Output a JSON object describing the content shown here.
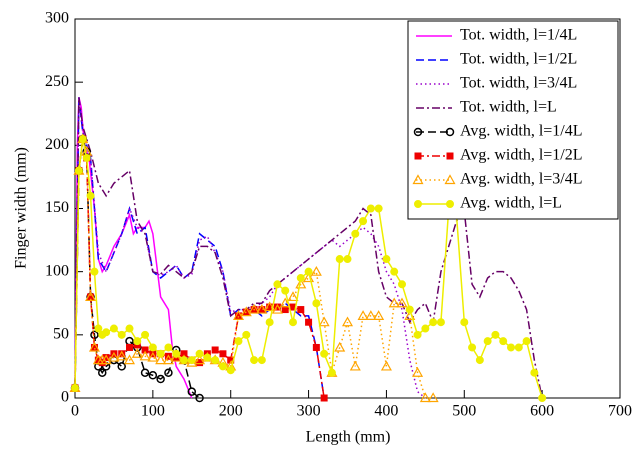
{
  "chart_data": {
    "type": "line",
    "x_label": "Length (mm)",
    "y_label": "Finger width (mm)",
    "xlim": [
      0,
      700
    ],
    "xticks": [
      0,
      100,
      200,
      300,
      400,
      500,
      600,
      700
    ],
    "ylim": [
      0,
      300
    ],
    "yticks": [
      0,
      50,
      100,
      150,
      200,
      250,
      300
    ],
    "legend": "top-right",
    "series": [
      {
        "name": "Tot. width, l=1/4L",
        "color": "#ff00ff",
        "dash": "solid",
        "marker": "none",
        "x": [
          0,
          3,
          5,
          8,
          12,
          18,
          25,
          30,
          35,
          40,
          50,
          60,
          70,
          75,
          80,
          90,
          95,
          100,
          110,
          120,
          125,
          130,
          140,
          150
        ],
        "values": [
          10,
          200,
          238,
          230,
          200,
          190,
          150,
          110,
          100,
          105,
          120,
          130,
          145,
          130,
          135,
          135,
          140,
          130,
          80,
          70,
          40,
          25,
          15,
          0
        ]
      },
      {
        "name": "Tot. width, l=1/2L",
        "color": "#0000ff",
        "dash": "dashed",
        "marker": "none",
        "x": [
          0,
          5,
          10,
          20,
          30,
          40,
          50,
          60,
          70,
          80,
          90,
          100,
          110,
          120,
          130,
          140,
          150,
          160,
          170,
          180,
          190,
          200,
          210,
          220,
          230,
          240,
          250,
          260,
          270,
          280,
          290,
          300,
          310,
          320
        ],
        "values": [
          10,
          238,
          210,
          190,
          110,
          100,
          115,
          130,
          150,
          130,
          135,
          100,
          95,
          100,
          105,
          95,
          100,
          130,
          125,
          120,
          100,
          65,
          70,
          70,
          70,
          65,
          70,
          70,
          75,
          70,
          65,
          65,
          40,
          0
        ]
      },
      {
        "name": "Tot. width, l=3/4L",
        "color": "#9900cc",
        "dash": "dotted",
        "marker": "none",
        "x": [
          0,
          5,
          10,
          20,
          30,
          40,
          50,
          60,
          70,
          80,
          90,
          100,
          110,
          120,
          130,
          140,
          150,
          160,
          170,
          180,
          190,
          200,
          210,
          220,
          230,
          240,
          250,
          260,
          270,
          280,
          290,
          300,
          310,
          320,
          330,
          340,
          350,
          360,
          370,
          380,
          390,
          400,
          410,
          420,
          430,
          440,
          450
        ],
        "values": [
          10,
          236,
          210,
          190,
          115,
          100,
          115,
          130,
          150,
          135,
          130,
          100,
          97,
          100,
          105,
          95,
          98,
          125,
          128,
          115,
          100,
          68,
          70,
          70,
          72,
          75,
          80,
          90,
          95,
          100,
          105,
          110,
          115,
          120,
          125,
          120,
          125,
          130,
          135,
          130,
          120,
          100,
          90,
          70,
          30,
          5,
          0
        ]
      },
      {
        "name": "Tot. width, l=L",
        "color": "#660066",
        "dash": "dashdot",
        "marker": "none",
        "x": [
          0,
          5,
          10,
          20,
          30,
          40,
          50,
          60,
          70,
          80,
          90,
          100,
          110,
          120,
          130,
          140,
          150,
          160,
          170,
          180,
          190,
          200,
          210,
          220,
          230,
          240,
          250,
          260,
          270,
          280,
          290,
          300,
          310,
          320,
          330,
          340,
          350,
          360,
          370,
          380,
          390,
          400,
          410,
          420,
          430,
          440,
          450,
          460,
          470,
          480,
          490,
          500,
          510,
          520,
          530,
          540,
          550,
          560,
          570,
          580,
          590,
          600
        ],
        "values": [
          10,
          238,
          215,
          195,
          170,
          160,
          170,
          175,
          180,
          140,
          130,
          100,
          98,
          105,
          100,
          95,
          100,
          120,
          120,
          115,
          95,
          65,
          70,
          70,
          75,
          75,
          85,
          90,
          95,
          100,
          105,
          110,
          115,
          120,
          125,
          130,
          135,
          140,
          150,
          145,
          100,
          80,
          75,
          75,
          60,
          70,
          75,
          60,
          100,
          120,
          140,
          148,
          90,
          80,
          95,
          100,
          100,
          95,
          85,
          70,
          30,
          0
        ]
      },
      {
        "name": "Avg. width, l=1/4L",
        "color": "#000000",
        "dash": "dashed",
        "marker": "circle-open",
        "x": [
          0,
          5,
          10,
          15,
          20,
          25,
          30,
          35,
          40,
          50,
          60,
          70,
          80,
          90,
          100,
          110,
          120,
          130,
          140,
          150,
          160
        ],
        "values": [
          8,
          180,
          205,
          195,
          80,
          50,
          25,
          20,
          25,
          30,
          25,
          45,
          40,
          20,
          18,
          15,
          20,
          38,
          30,
          5,
          0
        ]
      },
      {
        "name": "Avg. width, l=1/2L",
        "color": "#ee0000",
        "dash": "dashdot",
        "marker": "square",
        "x": [
          0,
          5,
          10,
          15,
          20,
          25,
          30,
          35,
          40,
          50,
          60,
          70,
          80,
          90,
          100,
          110,
          120,
          130,
          140,
          150,
          160,
          170,
          180,
          190,
          200,
          210,
          220,
          230,
          240,
          250,
          260,
          270,
          280,
          290,
          300,
          310,
          320
        ],
        "values": [
          8,
          180,
          205,
          190,
          80,
          40,
          30,
          28,
          32,
          35,
          35,
          40,
          42,
          38,
          35,
          35,
          33,
          32,
          35,
          30,
          28,
          35,
          38,
          35,
          30,
          65,
          68,
          70,
          70,
          72,
          72,
          70,
          72,
          70,
          60,
          40,
          0
        ]
      },
      {
        "name": "Avg. width, l=3/4L",
        "color": "#ffa500",
        "dash": "dotted",
        "marker": "triangle-open",
        "x": [
          0,
          5,
          10,
          15,
          20,
          25,
          30,
          35,
          40,
          50,
          60,
          70,
          80,
          90,
          100,
          110,
          120,
          130,
          140,
          150,
          160,
          170,
          180,
          190,
          200,
          210,
          220,
          230,
          240,
          250,
          260,
          270,
          280,
          290,
          300,
          310,
          320,
          330,
          340,
          350,
          360,
          370,
          380,
          390,
          400,
          410,
          420,
          430,
          440,
          450,
          460
        ],
        "values": [
          8,
          180,
          205,
          195,
          80,
          40,
          30,
          30,
          30,
          32,
          33,
          30,
          35,
          33,
          32,
          30,
          30,
          32,
          30,
          28,
          30,
          32,
          30,
          28,
          25,
          65,
          68,
          70,
          70,
          72,
          70,
          75,
          80,
          90,
          95,
          100,
          60,
          20,
          40,
          60,
          25,
          65,
          65,
          65,
          25,
          75,
          75,
          65,
          20,
          0,
          0
        ]
      },
      {
        "name": "Avg. width, l=L",
        "color": "#eeee00",
        "dash": "solid",
        "marker": "circle",
        "x": [
          0,
          5,
          10,
          15,
          20,
          25,
          30,
          35,
          40,
          50,
          60,
          70,
          80,
          90,
          100,
          110,
          120,
          130,
          140,
          150,
          160,
          170,
          180,
          190,
          200,
          210,
          220,
          230,
          240,
          250,
          260,
          270,
          280,
          290,
          300,
          310,
          320,
          330,
          340,
          350,
          360,
          370,
          380,
          390,
          400,
          410,
          420,
          430,
          440,
          450,
          460,
          470,
          480,
          490,
          500,
          510,
          520,
          530,
          540,
          550,
          560,
          570,
          580,
          590,
          600
        ],
        "values": [
          8,
          180,
          205,
          190,
          160,
          100,
          55,
          50,
          52,
          55,
          50,
          55,
          45,
          50,
          40,
          35,
          40,
          35,
          30,
          30,
          35,
          32,
          30,
          25,
          22,
          45,
          50,
          30,
          30,
          60,
          90,
          85,
          60,
          95,
          100,
          75,
          35,
          20,
          110,
          110,
          130,
          140,
          150,
          150,
          110,
          100,
          90,
          70,
          50,
          55,
          60,
          60,
          150,
          145,
          60,
          40,
          30,
          45,
          50,
          45,
          40,
          40,
          45,
          20,
          0
        ]
      }
    ]
  }
}
